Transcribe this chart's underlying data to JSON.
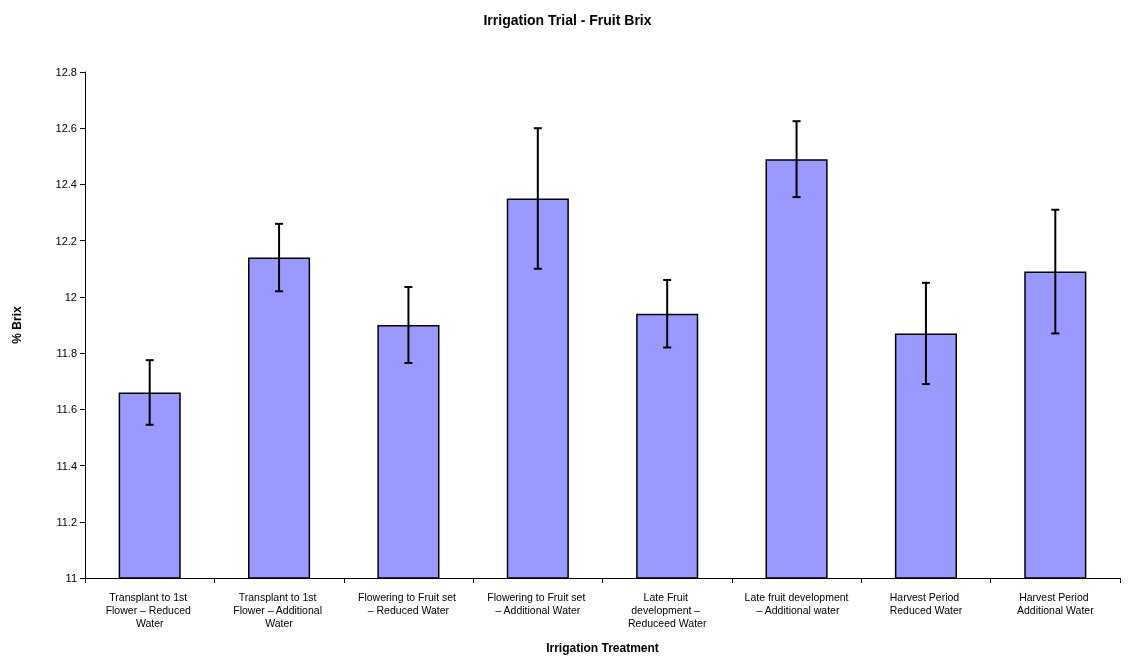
{
  "chart_data": {
    "type": "bar",
    "title": "Irrigation Trial - Fruit Brix",
    "xlabel": "Irrigation Treatment",
    "ylabel": "% Brix",
    "categories": [
      "Transplant to 1st Flower – Reduced Water",
      "Transplant to 1st Flower – Additional Water",
      "Flowering to Fruit set – Reduced Water",
      "Flowering to Fruit set – Additional Water",
      "Late Fruit development – Reduceed Water",
      "Late fruit development – Additional water",
      "Harvest Period Reduced Water",
      "Harvest Period Additional Water"
    ],
    "values": [
      11.66,
      12.14,
      11.9,
      12.35,
      11.94,
      12.49,
      11.87,
      12.09
    ],
    "errors": [
      0.115,
      0.12,
      0.135,
      0.25,
      0.12,
      0.135,
      0.18,
      0.22
    ],
    "color": "#9999ff",
    "ylim": [
      11,
      12.8
    ],
    "yticks": [
      11,
      11.2,
      11.4,
      11.6,
      11.8,
      12,
      12.2,
      12.4,
      12.6,
      12.8
    ],
    "grid": false
  }
}
